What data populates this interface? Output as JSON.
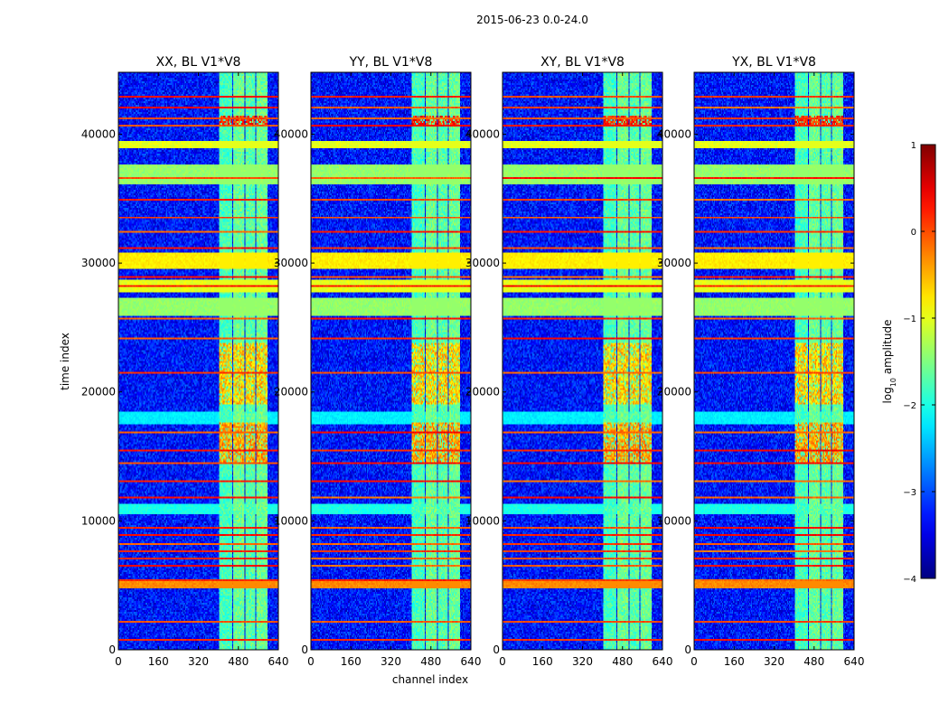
{
  "chart_data": {
    "type": "heatmap",
    "suptitle": "2015-06-23 0.0-24.0",
    "xlabel": "channel index",
    "ylabel": "time index",
    "xlim": [
      0,
      640
    ],
    "ylim": [
      0,
      44800
    ],
    "xticks": [
      "0",
      "160",
      "320",
      "480",
      "640"
    ],
    "xtick_values": [
      0,
      160,
      320,
      480,
      640
    ],
    "yticks": [
      "0",
      "10000",
      "20000",
      "30000",
      "40000"
    ],
    "ytick_values": [
      0,
      10000,
      20000,
      30000,
      40000
    ],
    "panels": [
      {
        "title": "XX, BL V1*V8"
      },
      {
        "title": "YY, BL V1*V8"
      },
      {
        "title": "XY, BL V1*V8"
      },
      {
        "title": "YX, BL V1*V8"
      }
    ],
    "colorbar": {
      "label": "log10 amplitude",
      "label_prefix": "log",
      "label_sub": "10",
      "label_suffix": " amplitude",
      "range": [
        -4,
        1
      ],
      "ticks": [
        "1",
        "0",
        "−1",
        "−2",
        "−3",
        "−4"
      ],
      "tick_values": [
        1,
        0,
        -1,
        -2,
        -3,
        -4
      ],
      "colormap": "jet"
    },
    "structure": {
      "baseline_log_amplitude": -3.3,
      "rfi_channel_bands": [
        {
          "start": 405,
          "end": 455,
          "log_amplitude": -1.8
        },
        {
          "start": 460,
          "end": 505,
          "log_amplitude": -1.6
        },
        {
          "start": 508,
          "end": 548,
          "log_amplitude": -1.7
        },
        {
          "start": 552,
          "end": 598,
          "log_amplitude": -1.6
        }
      ],
      "time_bands": [
        {
          "start": 26000,
          "end": 27300,
          "log_amplitude": -1.4
        },
        {
          "start": 36300,
          "end": 37600,
          "log_amplitude": -1.4
        },
        {
          "start": 39000,
          "end": 39500,
          "log_amplitude": -1.0
        },
        {
          "start": 10500,
          "end": 11200,
          "log_amplitude": -2.0
        },
        {
          "start": 17600,
          "end": 18400,
          "log_amplitude": -2.2
        },
        {
          "start": 4800,
          "end": 5400,
          "log_amplitude": -0.3
        },
        {
          "start": 29600,
          "end": 30800,
          "log_amplitude": -0.8
        },
        {
          "start": 27800,
          "end": 28600,
          "log_amplitude": -1.0
        }
      ],
      "hot_time_lines": [
        700,
        2100,
        5300,
        6400,
        7000,
        7600,
        8200,
        8800,
        9400,
        11800,
        13000,
        14500,
        15500,
        16800,
        21500,
        24200,
        25700,
        28200,
        29000,
        31200,
        32500,
        33600,
        35000,
        36700,
        40700,
        41300,
        42100,
        43000
      ],
      "warm_time_bands": [
        {
          "start": 14500,
          "end": 17600,
          "log_amplitude": -0.4
        },
        {
          "start": 19000,
          "end": 23800,
          "log_amplitude": -0.6
        },
        {
          "start": 40800,
          "end": 41500,
          "log_amplitude": 0.2
        }
      ]
    }
  }
}
